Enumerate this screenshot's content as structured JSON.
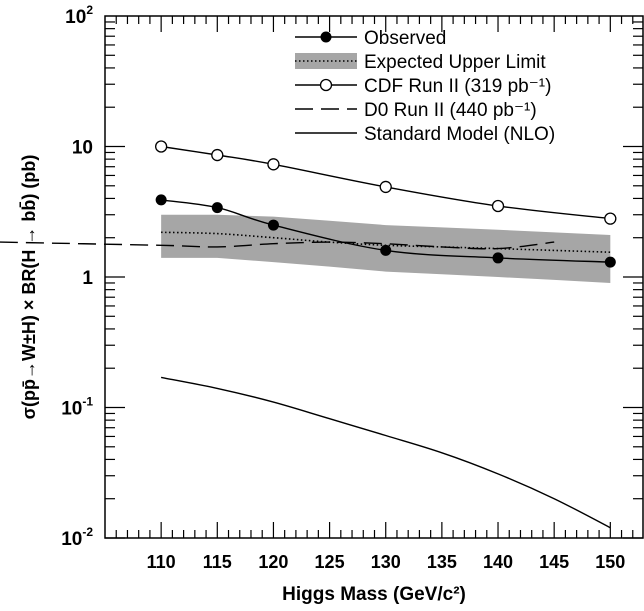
{
  "chart_data": {
    "type": "line",
    "xlabel": "Higgs Mass (GeV/c²)",
    "ylabel": "σ(pp̄→W±H) × BR(H → bb̄) (pb)",
    "xlim": [
      105,
      153
    ],
    "ylim": [
      0.01,
      100
    ],
    "yscale": "log",
    "grid": false,
    "legend_position": "top-right",
    "x_ticks": [
      110,
      115,
      120,
      125,
      130,
      135,
      140,
      145,
      150
    ],
    "y_ticks": [
      {
        "value": 0.01,
        "base": "10",
        "exp": "-2"
      },
      {
        "value": 0.1,
        "base": "10",
        "exp": "-1"
      },
      {
        "value": 1,
        "base": "1",
        "exp": ""
      },
      {
        "value": 10,
        "base": "10",
        "exp": ""
      },
      {
        "value": 100,
        "base": "10",
        "exp": "2"
      }
    ],
    "series": [
      {
        "name": "Observed",
        "style": "filled-markers",
        "x": [
          110,
          115,
          120,
          130,
          140,
          150
        ],
        "y": [
          3.9,
          3.4,
          2.5,
          1.6,
          1.4,
          1.3
        ]
      },
      {
        "name": "Expected Upper Limit",
        "style": "dotted-band",
        "x": [
          110,
          115,
          120,
          125,
          130,
          135,
          140,
          145,
          150
        ],
        "y": [
          2.2,
          2.15,
          2.0,
          1.85,
          1.75,
          1.7,
          1.65,
          1.6,
          1.55
        ],
        "band_low": [
          1.4,
          1.4,
          1.3,
          1.2,
          1.1,
          1.05,
          1.0,
          0.95,
          0.9
        ],
        "band_high": [
          3.0,
          3.0,
          2.9,
          2.7,
          2.5,
          2.4,
          2.3,
          2.2,
          2.1
        ]
      },
      {
        "name": "CDF Run II (319 pb⁻¹)",
        "style": "open-markers",
        "x": [
          110,
          115,
          120,
          130,
          140,
          150
        ],
        "y": [
          10.0,
          8.6,
          7.3,
          4.9,
          3.5,
          2.8
        ]
      },
      {
        "name": "D0 Run II (440 pb⁻¹)",
        "style": "dashed",
        "x": [
          105,
          110,
          115,
          120,
          125,
          130,
          135,
          140,
          145
        ],
        "y": [
          1.85,
          1.75,
          1.7,
          1.8,
          1.85,
          1.8,
          1.7,
          1.65,
          1.85
        ]
      },
      {
        "name": "Standard Model (NLO)",
        "style": "solid",
        "x": [
          110,
          115,
          120,
          125,
          130,
          135,
          140,
          145,
          150
        ],
        "y": [
          0.17,
          0.14,
          0.11,
          0.082,
          0.061,
          0.045,
          0.031,
          0.02,
          0.012
        ]
      }
    ]
  }
}
